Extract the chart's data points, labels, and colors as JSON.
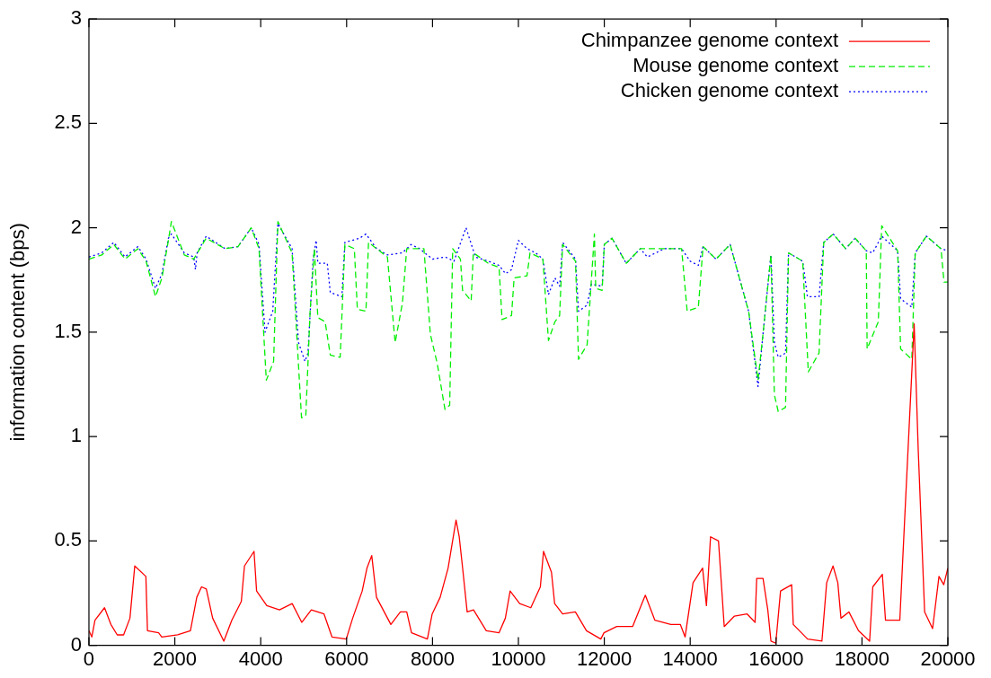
{
  "chart_data": {
    "type": "line",
    "ylabel": "information content (bps)",
    "xlim": [
      0,
      20000
    ],
    "xticks": [
      0,
      2000,
      4000,
      6000,
      8000,
      10000,
      12000,
      14000,
      16000,
      18000,
      20000
    ],
    "ylim": [
      0,
      3
    ],
    "yticks": [
      0,
      0.5,
      1,
      1.5,
      2,
      2.5,
      3
    ],
    "grid": false,
    "legend": "top right",
    "marker": "none",
    "series": [
      {
        "name": "Chimpanzee genome context",
        "color": "#ff0000",
        "line_style": "solid",
        "x": [
          0,
          67,
          141,
          363,
          511,
          659,
          807,
          955,
          1067,
          1326,
          1363,
          1622,
          1696,
          2067,
          2363,
          2511,
          2622,
          2733,
          2881,
          3141,
          3326,
          3548,
          3622,
          3844,
          3904,
          4141,
          4437,
          4733,
          4955,
          5178,
          5474,
          5659,
          5992,
          6141,
          6363,
          6474,
          6585,
          6696,
          7030,
          7252,
          7400,
          7511,
          7881,
          7992,
          8178,
          8363,
          8548,
          8622,
          8696,
          8807,
          8955,
          9252,
          9548,
          9696,
          9807,
          10030,
          10289,
          10511,
          10585,
          10770,
          10844,
          11030,
          11326,
          11585,
          11919,
          11993,
          12289,
          12659,
          12955,
          13178,
          13548,
          13770,
          13881,
          14067,
          14289,
          14378,
          14474,
          14659,
          14793,
          15030,
          15326,
          15511,
          15548,
          15696,
          15807,
          15881,
          15993,
          16104,
          16363,
          16400,
          16733,
          17067,
          17178,
          17326,
          17437,
          17511,
          17696,
          17918,
          18178,
          18252,
          18474,
          18548,
          18881,
          18993,
          19215,
          19311,
          19459,
          19644,
          19793,
          19904,
          20000
        ],
        "values": [
          0.07,
          0.04,
          0.12,
          0.18,
          0.1,
          0.05,
          0.05,
          0.13,
          0.38,
          0.33,
          0.07,
          0.06,
          0.04,
          0.05,
          0.07,
          0.23,
          0.28,
          0.27,
          0.13,
          0.02,
          0.12,
          0.21,
          0.38,
          0.45,
          0.26,
          0.19,
          0.17,
          0.2,
          0.11,
          0.17,
          0.15,
          0.04,
          0.03,
          0.13,
          0.26,
          0.37,
          0.43,
          0.23,
          0.1,
          0.16,
          0.16,
          0.06,
          0.03,
          0.15,
          0.23,
          0.37,
          0.6,
          0.52,
          0.38,
          0.16,
          0.17,
          0.07,
          0.06,
          0.13,
          0.26,
          0.2,
          0.18,
          0.28,
          0.45,
          0.35,
          0.2,
          0.15,
          0.16,
          0.07,
          0.03,
          0.06,
          0.09,
          0.09,
          0.24,
          0.12,
          0.1,
          0.1,
          0.04,
          0.3,
          0.37,
          0.19,
          0.52,
          0.5,
          0.09,
          0.14,
          0.15,
          0.11,
          0.32,
          0.32,
          0.17,
          0.02,
          0.01,
          0.26,
          0.29,
          0.1,
          0.03,
          0.02,
          0.3,
          0.38,
          0.3,
          0.13,
          0.16,
          0.07,
          0.02,
          0.28,
          0.34,
          0.12,
          0.12,
          0.6,
          1.54,
          0.93,
          0.16,
          0.08,
          0.33,
          0.29,
          0.37
        ]
      },
      {
        "name": "Mouse genome context",
        "color": "#00ee00",
        "line_style": "dashed",
        "x": [
          0,
          300,
          580,
          840,
          1140,
          1330,
          1550,
          1700,
          1850,
          1920,
          2220,
          2440,
          2730,
          3170,
          3470,
          3780,
          3960,
          4130,
          4300,
          4400,
          4730,
          4950,
          5050,
          5150,
          5250,
          5330,
          5500,
          5620,
          5850,
          5960,
          6180,
          6250,
          6450,
          6510,
          6950,
          7130,
          7300,
          7400,
          7800,
          7950,
          8110,
          8290,
          8400,
          8470,
          8650,
          8700,
          8900,
          8950,
          9300,
          9550,
          9620,
          9840,
          9900,
          10200,
          10270,
          10570,
          10700,
          10850,
          10960,
          11030,
          11330,
          11400,
          11600,
          11770,
          11800,
          11950,
          12000,
          12180,
          12510,
          12840,
          13400,
          13800,
          13930,
          14190,
          14300,
          14600,
          14930,
          15360,
          15580,
          15700,
          15880,
          15960,
          16050,
          16220,
          16290,
          16620,
          16750,
          17000,
          17110,
          17330,
          17620,
          17840,
          18100,
          18120,
          18380,
          18460,
          18830,
          18900,
          19160,
          19240,
          19500,
          19840,
          19910,
          20000
        ],
        "values": [
          1.85,
          1.87,
          1.92,
          1.85,
          1.9,
          1.84,
          1.67,
          1.76,
          1.94,
          2.03,
          1.87,
          1.85,
          1.95,
          1.9,
          1.91,
          2.0,
          1.9,
          1.27,
          1.36,
          2.03,
          1.88,
          1.09,
          1.1,
          1.6,
          1.9,
          1.57,
          1.55,
          1.39,
          1.38,
          1.92,
          1.9,
          1.61,
          1.6,
          1.93,
          1.86,
          1.45,
          1.64,
          1.9,
          1.9,
          1.49,
          1.35,
          1.13,
          1.15,
          1.9,
          1.85,
          1.7,
          1.65,
          1.88,
          1.83,
          1.81,
          1.56,
          1.58,
          1.76,
          1.77,
          1.88,
          1.85,
          1.46,
          1.55,
          1.58,
          1.92,
          1.84,
          1.37,
          1.44,
          1.97,
          1.71,
          1.7,
          1.92,
          1.95,
          1.83,
          1.9,
          1.9,
          1.9,
          1.6,
          1.62,
          1.91,
          1.85,
          1.92,
          1.6,
          1.27,
          1.5,
          1.87,
          1.2,
          1.12,
          1.14,
          1.88,
          1.84,
          1.31,
          1.4,
          1.93,
          1.97,
          1.9,
          1.95,
          1.89,
          1.42,
          1.55,
          2.01,
          1.89,
          1.42,
          1.37,
          1.88,
          1.96,
          1.9,
          1.74,
          1.74
        ]
      },
      {
        "name": "Chicken genome context",
        "color": "#0000ff",
        "line_style": "dotted",
        "x": [
          0,
          300,
          580,
          840,
          1140,
          1330,
          1550,
          1700,
          1850,
          1920,
          2220,
          2440,
          2480,
          2520,
          2730,
          3170,
          3470,
          3780,
          3960,
          4100,
          4280,
          4400,
          4730,
          4880,
          5030,
          5100,
          5220,
          5290,
          5330,
          5550,
          5620,
          5890,
          5960,
          6300,
          6450,
          6700,
          6950,
          7300,
          7500,
          7700,
          8000,
          8300,
          8500,
          8780,
          9000,
          9300,
          9550,
          9700,
          9840,
          10000,
          10200,
          10400,
          10570,
          10700,
          10850,
          10960,
          11030,
          11330,
          11400,
          11600,
          11700,
          11950,
          12000,
          12180,
          12510,
          12840,
          13000,
          13400,
          13800,
          14000,
          14190,
          14300,
          14600,
          14930,
          15360,
          15580,
          15700,
          15880,
          15960,
          16050,
          16220,
          16290,
          16620,
          16730,
          17000,
          17110,
          17330,
          17620,
          17840,
          18100,
          18250,
          18460,
          18830,
          18900,
          19160,
          19240,
          19500,
          19840,
          20000
        ],
        "values": [
          1.86,
          1.88,
          1.93,
          1.86,
          1.91,
          1.85,
          1.71,
          1.78,
          1.95,
          1.97,
          1.88,
          1.86,
          1.8,
          1.88,
          1.96,
          1.9,
          1.91,
          2.0,
          1.92,
          1.5,
          1.6,
          2.02,
          1.9,
          1.45,
          1.36,
          1.4,
          1.85,
          1.94,
          1.83,
          1.83,
          1.69,
          1.67,
          1.93,
          1.95,
          1.97,
          1.9,
          1.87,
          1.88,
          1.92,
          1.9,
          1.85,
          1.86,
          1.84,
          2.0,
          1.86,
          1.84,
          1.82,
          1.78,
          1.8,
          1.94,
          1.9,
          1.88,
          1.85,
          1.68,
          1.76,
          1.72,
          1.93,
          1.85,
          1.6,
          1.63,
          1.73,
          1.72,
          1.92,
          1.95,
          1.83,
          1.9,
          1.86,
          1.9,
          1.9,
          1.84,
          1.82,
          1.91,
          1.85,
          1.92,
          1.6,
          1.24,
          1.5,
          1.87,
          1.45,
          1.38,
          1.4,
          1.88,
          1.84,
          1.67,
          1.67,
          1.93,
          1.97,
          1.9,
          1.95,
          1.89,
          1.88,
          1.96,
          1.89,
          1.66,
          1.62,
          1.88,
          1.96,
          1.9,
          1.89
        ]
      }
    ]
  }
}
